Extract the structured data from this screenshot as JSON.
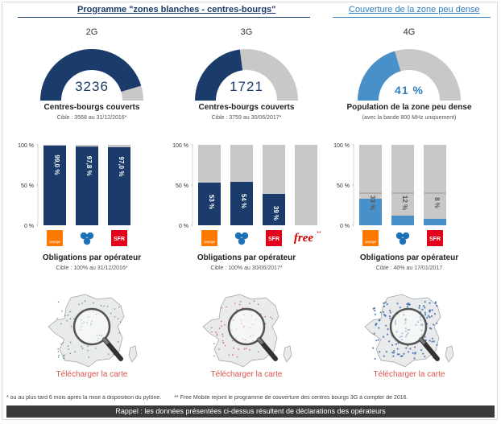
{
  "headers": {
    "left": "Programme \"zones blanches - centres-bourgs\"",
    "right": "Couverture de la zone peu dense"
  },
  "colors": {
    "navy": "#1b3c6a",
    "blue": "#4a90c8",
    "gray": "#c8c8c8",
    "link_red": "#d9534f"
  },
  "columns": [
    {
      "generation": "2G",
      "gauge": {
        "value_text": "3236",
        "fraction": 0.907,
        "color": "#1b3c6a"
      },
      "gauge_caption": "Centres-bourgs couverts",
      "gauge_sub": "Cible : 3568 au 31/12/2016*",
      "oblig_caption": "Obligations par opérateur",
      "oblig_sub": "Cible : 100% au 31/12/2016*",
      "download": "Télécharger la carte"
    },
    {
      "generation": "3G",
      "gauge": {
        "value_text": "1721",
        "fraction": 0.459,
        "color": "#1b3c6a"
      },
      "gauge_caption": "Centres-bourgs couverts",
      "gauge_sub": "Cible : 3759 au 30/06/2017*",
      "oblig_caption": "Obligations par opérateur",
      "oblig_sub": "Cible : 100% au 30/06/2017*",
      "download": "Télécharger la carte"
    },
    {
      "generation": "4G",
      "gauge": {
        "value_text": "41 %",
        "fraction": 0.41,
        "color": "#4a90c8"
      },
      "gauge_caption": "Population de la zone peu dense",
      "gauge_sub": "(avec la bande 800 MHz uniquement)",
      "oblig_caption": "Obligations par opérateur",
      "oblig_sub": "Cible : 40% au 17/01/2017",
      "download": "Télécharger la carte"
    }
  ],
  "chart_data": [
    {
      "type": "bar",
      "categories": [
        "orange",
        "Bouygues",
        "SFR"
      ],
      "values": [
        99.0,
        97.8,
        97.0
      ],
      "labels": [
        "99,0 %",
        "97,8 %",
        "97,0 %"
      ],
      "ylim": [
        0,
        100
      ],
      "ticks": [
        "100 %",
        "50 %",
        "0 %"
      ],
      "bar_color": "#1b3c6a",
      "label_orientation": "vertical"
    },
    {
      "type": "bar",
      "categories": [
        "orange",
        "Bouygues",
        "SFR",
        "free"
      ],
      "values": [
        53,
        54,
        39,
        0
      ],
      "labels": [
        "53 %",
        "54 %",
        "39 %",
        ""
      ],
      "ylim": [
        0,
        100
      ],
      "ticks": [
        "100 %",
        "50 %",
        "0 %"
      ],
      "bar_color": "#1b3c6a",
      "label_orientation": "vertical"
    },
    {
      "type": "bar",
      "categories": [
        "orange",
        "Bouygues",
        "SFR"
      ],
      "values": [
        33,
        12,
        8
      ],
      "labels": [
        "33 %",
        "12 %",
        "8 %"
      ],
      "target": 40,
      "ylim": [
        0,
        100
      ],
      "ticks": [
        "100 %",
        "50 %",
        "0 %"
      ],
      "bar_color": "#4a90c8",
      "label_orientation": "vertical"
    }
  ],
  "logos": {
    "orange": "orange",
    "sfr": "SFR",
    "free": "free",
    "free_suffix": "**"
  },
  "footnotes": {
    "note1": "* ou au plus tard 6 mois après la mise à disposition du pylône.",
    "note2": "** Free Mobile rejoint le programme de couverture des centres bourgs 3G à compter de 2016."
  },
  "bottom_bar": "Rappel : les données présentées ci-dessus résultent de déclarations des opérateurs"
}
